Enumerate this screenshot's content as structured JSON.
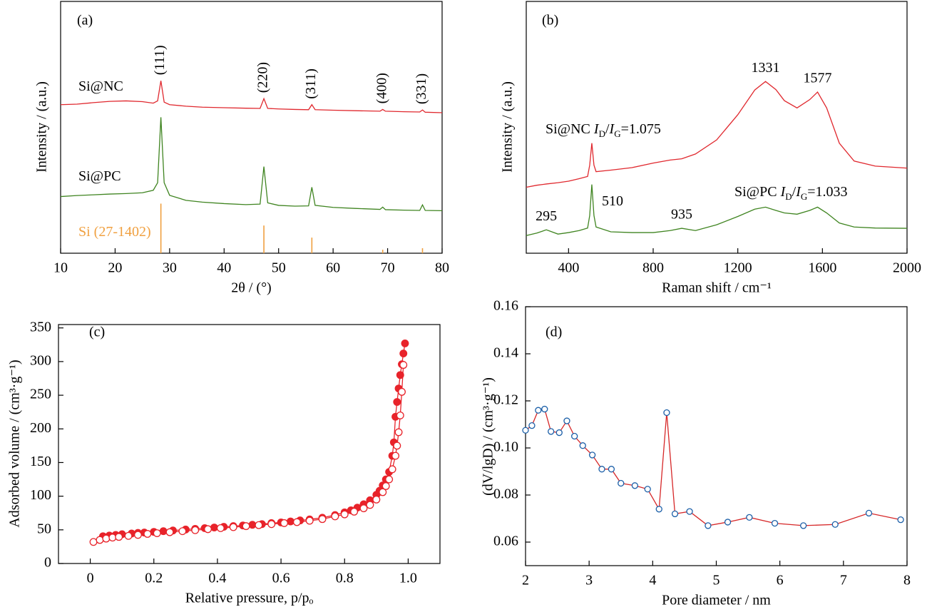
{
  "chart_data": [
    {
      "type": "line",
      "panel": "(a)",
      "xlabel": "2θ / (°)",
      "ylabel": "Intensity / (a.u.)",
      "xlim": [
        10,
        80
      ],
      "xticks": [
        10,
        20,
        30,
        40,
        50,
        60,
        70,
        80
      ],
      "ylim": [
        0,
        100
      ],
      "series": [
        {
          "name": "Si@NC",
          "color": "#e0282e",
          "x": [
            10,
            13,
            16,
            19,
            22,
            25,
            27,
            27.8,
            28.4,
            29,
            30,
            33,
            36,
            40,
            44,
            46.6,
            47.3,
            48,
            50,
            53,
            55.5,
            56.1,
            56.7,
            60,
            64,
            68.6,
            69.1,
            69.6,
            73,
            75.9,
            76.4,
            76.9,
            80
          ],
          "values": [
            59,
            59.2,
            59.8,
            60.3,
            60.5,
            60.2,
            59.6,
            60.5,
            68.5,
            60,
            59,
            58.4,
            58,
            57.8,
            57.6,
            57.5,
            61.4,
            57.5,
            57.3,
            57.1,
            57,
            59,
            57,
            56.8,
            56.6,
            56.4,
            57.1,
            56.4,
            56.2,
            56.1,
            56.9,
            56,
            55.8
          ],
          "peaks": [
            {
              "value": 28.4,
              "label": "(111)"
            },
            {
              "value": 47.3,
              "label": "(220)"
            },
            {
              "value": 56.1,
              "label": "(311)"
            },
            {
              "value": 69.1,
              "label": "(400)"
            },
            {
              "value": 76.4,
              "label": "(331)"
            }
          ]
        },
        {
          "name": "Si@PC",
          "color": "#3f8420",
          "x": [
            10,
            13,
            16,
            19,
            22,
            25,
            27,
            27.8,
            28.4,
            29,
            30,
            33,
            36,
            40,
            44,
            46.6,
            47.3,
            48,
            50,
            53,
            55.5,
            56.1,
            56.7,
            60,
            64,
            68.6,
            69.1,
            69.6,
            73,
            75.9,
            76.4,
            76.9,
            80
          ],
          "values": [
            22.5,
            22.9,
            23.2,
            23.5,
            23.7,
            24,
            25,
            28,
            54,
            28,
            23,
            21,
            20.3,
            19.7,
            19.3,
            19.5,
            34.4,
            20,
            19,
            18.7,
            18.8,
            26.2,
            19,
            18.2,
            17.8,
            17.4,
            18.3,
            17.3,
            17.1,
            17,
            19.2,
            17,
            16.9
          ]
        },
        {
          "name": "Si (27-1402)",
          "type": "stem",
          "color": "#f0a040",
          "x": [
            28.4,
            47.3,
            56.1,
            69.1,
            76.4
          ],
          "values": [
            19.7,
            11,
            6.2,
            1.4,
            2
          ]
        }
      ]
    },
    {
      "type": "line",
      "panel": "(b)",
      "xlabel": "Raman shift / cm⁻¹",
      "ylabel": "Intensity / (a.u.)",
      "xlim": [
        200,
        2000
      ],
      "xticks": [
        400,
        800,
        1200,
        1600,
        2000
      ],
      "ylim": [
        0,
        100
      ],
      "series": [
        {
          "name": "Si@NC",
          "parts": [
            "I",
            "D",
            "/",
            "I",
            "G",
            "=1.075"
          ],
          "color": "#e0282e",
          "x": [
            200,
            250,
            295,
            350,
            400,
            450,
            490,
            500,
            510,
            520,
            530,
            600,
            700,
            800,
            880,
            935,
            1000,
            1100,
            1200,
            1280,
            1331,
            1380,
            1420,
            1480,
            1540,
            1577,
            1620,
            1680,
            1750,
            1850,
            2000
          ],
          "values": [
            26.2,
            27,
            27.5,
            28,
            28.6,
            29.6,
            30.5,
            35,
            43.7,
            35,
            32.4,
            33,
            34,
            35.8,
            37,
            37.5,
            39.4,
            45,
            55,
            64.8,
            68.2,
            65,
            60.6,
            57.7,
            61,
            64,
            57.7,
            43.7,
            36.6,
            34.6,
            33.8
          ],
          "peaks": [
            1331,
            1577
          ]
        },
        {
          "name": "Si@PC",
          "parts": [
            "I",
            "D",
            "/",
            "I",
            "G",
            "=1.033"
          ],
          "color": "#3f8420",
          "x": [
            200,
            250,
            295,
            350,
            400,
            450,
            490,
            500,
            510,
            520,
            530,
            600,
            700,
            800,
            880,
            935,
            1000,
            1100,
            1200,
            1280,
            1331,
            1380,
            1420,
            1480,
            1540,
            1577,
            1620,
            1680,
            1750,
            1850,
            2000
          ],
          "values": [
            7,
            8,
            9.3,
            7.6,
            8.2,
            9,
            10,
            15,
            27.3,
            15,
            10.4,
            8.5,
            8.2,
            8.2,
            9,
            9.9,
            9,
            11.3,
            14.6,
            17.5,
            18.3,
            17,
            16,
            15.5,
            17,
            18.3,
            16,
            12,
            10.4,
            10,
            9.9
          ],
          "peaks": [
            295,
            510,
            935
          ]
        }
      ]
    },
    {
      "type": "line",
      "panel": "(c)",
      "xlabel": "Relative pressure, p/pₒ",
      "ylabel": "Adsorbed volume / (cm³·g⁻¹)",
      "xlim": [
        -0.1,
        1.1
      ],
      "xticks": [
        0,
        0.2,
        0.4,
        0.6,
        0.8,
        {
          "value": 1,
          "label": "1.0"
        }
      ],
      "ylim": [
        0,
        355
      ],
      "yticks": [
        0,
        50,
        100,
        150,
        200,
        250,
        300,
        350
      ],
      "series": [
        {
          "color": "#e8232a",
          "marker": "filled",
          "x": [
            0.04,
            0.06,
            0.08,
            0.1,
            0.13,
            0.15,
            0.17,
            0.2,
            0.23,
            0.26,
            0.3,
            0.33,
            0.36,
            0.39,
            0.42,
            0.45,
            0.48,
            0.51,
            0.54,
            0.57,
            0.6,
            0.63,
            0.66,
            0.69,
            0.73,
            0.77,
            0.8,
            0.82,
            0.84,
            0.86,
            0.88,
            0.9,
            0.91,
            0.92,
            0.93,
            0.94,
            0.95,
            0.955,
            0.96,
            0.965,
            0.97,
            0.975,
            0.98,
            0.985,
            0.99
          ],
          "values": [
            40.5,
            41.5,
            42.5,
            43.5,
            44.5,
            45.5,
            46,
            47,
            48,
            49,
            50.5,
            51.5,
            52.5,
            53.5,
            54.5,
            55.5,
            56.5,
            57.5,
            58.5,
            60,
            61,
            62.5,
            64,
            65.5,
            68,
            72,
            76,
            79,
            83,
            88,
            94,
            102,
            108,
            116,
            125,
            136,
            160,
            180,
            218,
            240,
            260,
            280,
            296,
            312,
            327
          ]
        },
        {
          "color": "#e8232a",
          "marker": "open",
          "x": [
            0.01,
            0.03,
            0.05,
            0.07,
            0.09,
            0.12,
            0.15,
            0.18,
            0.21,
            0.25,
            0.29,
            0.33,
            0.37,
            0.41,
            0.45,
            0.49,
            0.53,
            0.57,
            0.61,
            0.65,
            0.69,
            0.73,
            0.77,
            0.8,
            0.83,
            0.86,
            0.88,
            0.9,
            0.92,
            0.93,
            0.94,
            0.95,
            0.96,
            0.965,
            0.97,
            0.975,
            0.98,
            0.985
          ],
          "values": [
            32,
            35,
            37,
            38.5,
            39.5,
            41,
            42.5,
            44,
            45,
            46.5,
            48,
            49.5,
            51,
            52.5,
            54,
            55.5,
            57,
            58.5,
            60,
            61.5,
            63.5,
            66,
            70,
            73,
            77,
            82,
            87,
            95,
            106,
            115,
            125,
            140,
            160,
            175,
            195,
            220,
            255,
            295
          ]
        }
      ]
    },
    {
      "type": "line",
      "panel": "(d)",
      "xlabel": "Pore diameter / nm",
      "ylabel": "(dV/lgD) / (cm³·g⁻¹)",
      "xlim": [
        2,
        8
      ],
      "xticks": [
        2,
        3,
        4,
        5,
        6,
        7,
        8
      ],
      "ylim": [
        0.05,
        0.16
      ],
      "yticks": [
        0.06,
        0.08,
        {
          "value": 0.1,
          "label": "0.10"
        },
        0.12,
        0.14,
        0.16
      ],
      "series": [
        {
          "color": "#d62728",
          "marker": "open",
          "marker_color": "#1b5fa8",
          "x": [
            2.0,
            2.1,
            2.2,
            2.3,
            2.4,
            2.53,
            2.65,
            2.77,
            2.9,
            3.05,
            3.2,
            3.35,
            3.5,
            3.72,
            3.92,
            4.1,
            4.22,
            4.35,
            4.58,
            4.87,
            5.18,
            5.52,
            5.92,
            6.37,
            6.87,
            7.4,
            7.9
          ],
          "values": [
            0.1075,
            0.1095,
            0.116,
            0.1165,
            0.107,
            0.1065,
            0.1115,
            0.105,
            0.101,
            0.097,
            0.091,
            0.091,
            0.085,
            0.084,
            0.0825,
            0.074,
            0.115,
            0.072,
            0.073,
            0.067,
            0.0685,
            0.0705,
            0.068,
            0.067,
            0.0675,
            0.0723,
            0.0695
          ]
        }
      ]
    }
  ]
}
